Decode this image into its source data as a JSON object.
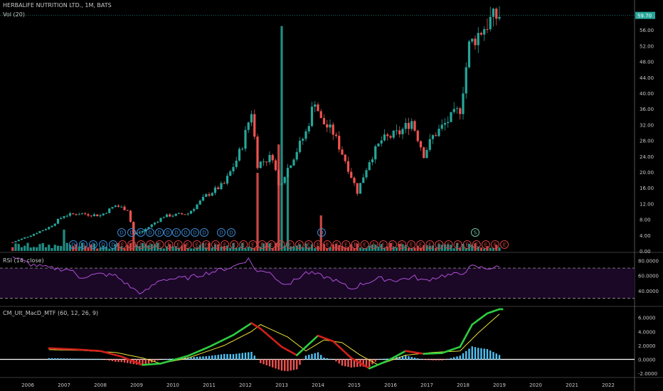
{
  "header": {
    "title": "HERBALIFE NUTRITION LTD., 1M, BATS",
    "vol_label": "Vol (20)"
  },
  "last_price": {
    "value": 59.7,
    "label": "59.70",
    "color": "#26a69a"
  },
  "rsi": {
    "title": "RSI (14, close)",
    "ticks": [
      "80.0000",
      "60.0000",
      "40.0000"
    ],
    "upper": 70,
    "lower": 30,
    "color": "#b04fd6",
    "band_color": "#1a0826"
  },
  "macd": {
    "title": "CM_Ult_MacD_MTF (60, 12, 26, 9)",
    "ticks": [
      "6.0000",
      "4.0000",
      "2.0000",
      "0.0000",
      "-2.0000"
    ]
  },
  "price_axis": {
    "ticks": [
      "56.00",
      "52.00",
      "48.00",
      "44.00",
      "40.00",
      "36.00",
      "32.00",
      "28.00",
      "24.00",
      "20.00",
      "16.00",
      "12.00",
      "8.00",
      "4.00",
      "0.00"
    ]
  },
  "x_axis": {
    "ticks": [
      "2006",
      "2007",
      "2008",
      "2009",
      "2010",
      "2011",
      "2012",
      "2013",
      "2014",
      "2015",
      "2016",
      "2017",
      "2018",
      "2019",
      "2020",
      "2021",
      "2022"
    ]
  },
  "colors": {
    "up": "#26a69a",
    "down": "#ef5350",
    "macd_up": "#2ecc40",
    "macd_down": "#d0201a",
    "signal": "#e8e23a",
    "hist_pos": "#4fc3f7",
    "hist_neg": "#ef5350",
    "zero": "#ffffff"
  },
  "markers": {
    "top_row": [
      "D",
      "D",
      "D",
      "D",
      "D",
      "D",
      "D",
      "D",
      "D",
      "D",
      "D",
      "D",
      "D",
      "D",
      "S"
    ],
    "bottom_row_D": [
      "D",
      "D",
      "D",
      "D",
      "D"
    ],
    "bottom_row_E_count": 42
  },
  "chart_data": {
    "type": "candlestick",
    "timeframe": "monthly",
    "x_range": [
      "2005-08",
      "2022-12"
    ],
    "price_ylim": [
      0,
      60
    ],
    "close_path": [
      [
        "2005-08",
        2.2
      ],
      [
        "2006-02",
        4.0
      ],
      [
        "2006-08",
        6.0
      ],
      [
        "2007-01",
        9.0
      ],
      [
        "2007-06",
        9.5
      ],
      [
        "2008-01",
        9.0
      ],
      [
        "2008-06",
        11.5
      ],
      [
        "2008-10",
        10.5
      ],
      [
        "2008-12",
        4.3
      ],
      [
        "2009-03",
        5.0
      ],
      [
        "2009-10",
        8.8
      ],
      [
        "2010-06",
        9.5
      ],
      [
        "2010-12",
        14.0
      ],
      [
        "2011-06",
        17.0
      ],
      [
        "2011-10",
        23.0
      ],
      [
        "2011-12",
        27.0
      ],
      [
        "2012-03",
        35.5
      ],
      [
        "2012-05",
        22.0
      ],
      [
        "2012-10",
        24.0
      ],
      [
        "2012-12",
        16.5
      ],
      [
        "2013-04",
        22.5
      ],
      [
        "2013-09",
        30.0
      ],
      [
        "2013-12",
        38.5
      ],
      [
        "2014-02",
        33.0
      ],
      [
        "2014-06",
        30.0
      ],
      [
        "2014-10",
        23.0
      ],
      [
        "2015-02",
        15.0
      ],
      [
        "2015-06",
        23.0
      ],
      [
        "2015-10",
        28.0
      ],
      [
        "2016-04",
        30.0
      ],
      [
        "2016-08",
        33.0
      ],
      [
        "2016-12",
        24.5
      ],
      [
        "2017-03",
        29.0
      ],
      [
        "2017-08",
        33.0
      ],
      [
        "2017-12",
        36.0
      ],
      [
        "2018-03",
        52.0
      ],
      [
        "2018-06",
        55.0
      ],
      [
        "2018-10",
        58.5
      ],
      [
        "2019-01",
        59.7
      ]
    ],
    "volume_spikes": [
      [
        "2012-05",
        0.33
      ],
      [
        "2012-12",
        0.45
      ],
      [
        "2013-01",
        0.95
      ],
      [
        "2013-03",
        0.32
      ],
      [
        "2014-02",
        0.15
      ],
      [
        "2007-01",
        0.09
      ],
      [
        "2008-12",
        0.12
      ]
    ],
    "rsi_path": [
      [
        "2005-08",
        85
      ],
      [
        "2006-02",
        75
      ],
      [
        "2006-08",
        70
      ],
      [
        "2007-03",
        68
      ],
      [
        "2007-06",
        58
      ],
      [
        "2008-01",
        62
      ],
      [
        "2008-06",
        60
      ],
      [
        "2008-12",
        42
      ],
      [
        "2009-03",
        36
      ],
      [
        "2009-09",
        55
      ],
      [
        "2010-06",
        57
      ],
      [
        "2011-01",
        64
      ],
      [
        "2011-09",
        72
      ],
      [
        "2012-02",
        82
      ],
      [
        "2012-05",
        65
      ],
      [
        "2012-09",
        66
      ],
      [
        "2012-12",
        52
      ],
      [
        "2013-04",
        50
      ],
      [
        "2013-09",
        64
      ],
      [
        "2013-12",
        62
      ],
      [
        "2014-06",
        55
      ],
      [
        "2014-12",
        42
      ],
      [
        "2015-03",
        48
      ],
      [
        "2015-09",
        56
      ],
      [
        "2016-03",
        54
      ],
      [
        "2016-09",
        58
      ],
      [
        "2016-12",
        53
      ],
      [
        "2017-06",
        60
      ],
      [
        "2017-12",
        62
      ],
      [
        "2018-04",
        72
      ],
      [
        "2018-08",
        70
      ],
      [
        "2019-01",
        71
      ]
    ],
    "macd_path": [
      [
        "2006-08",
        1.6
      ],
      [
        "2007-06",
        1.4
      ],
      [
        "2008-01",
        1.2
      ],
      [
        "2008-08",
        0.4
      ],
      [
        "2009-03",
        -0.8
      ],
      [
        "2009-09",
        -0.6
      ],
      [
        "2010-06",
        0.5
      ],
      [
        "2011-01",
        1.8
      ],
      [
        "2011-09",
        3.5
      ],
      [
        "2012-03",
        5.2
      ],
      [
        "2012-06",
        4.4
      ],
      [
        "2013-01",
        1.8
      ],
      [
        "2013-06",
        0.6
      ],
      [
        "2013-10",
        2.2
      ],
      [
        "2014-01",
        3.4
      ],
      [
        "2014-06",
        2.6
      ],
      [
        "2014-12",
        0.2
      ],
      [
        "2015-06",
        -1.3
      ],
      [
        "2015-12",
        -0.2
      ],
      [
        "2016-06",
        1.2
      ],
      [
        "2016-12",
        0.8
      ],
      [
        "2017-06",
        0.9
      ],
      [
        "2017-12",
        1.8
      ],
      [
        "2018-04",
        5.0
      ],
      [
        "2018-09",
        6.6
      ],
      [
        "2019-01",
        7.2
      ]
    ],
    "signal_path": [
      [
        "2006-08",
        1.4
      ],
      [
        "2007-06",
        1.3
      ],
      [
        "2008-06",
        1.0
      ],
      [
        "2009-03",
        0.2
      ],
      [
        "2009-09",
        -0.6
      ],
      [
        "2010-06",
        0.2
      ],
      [
        "2011-06",
        2.0
      ],
      [
        "2012-03",
        4.0
      ],
      [
        "2012-06",
        5.0
      ],
      [
        "2013-03",
        3.2
      ],
      [
        "2013-09",
        1.2
      ],
      [
        "2014-03",
        2.8
      ],
      [
        "2014-09",
        2.4
      ],
      [
        "2015-03",
        0.6
      ],
      [
        "2015-09",
        -0.8
      ],
      [
        "2016-06",
        0.6
      ],
      [
        "2017-03",
        1.0
      ],
      [
        "2017-12",
        1.2
      ],
      [
        "2018-06",
        3.8
      ],
      [
        "2019-01",
        6.5
      ]
    ],
    "macd_ylim": [
      -2.5,
      7.5
    ]
  }
}
